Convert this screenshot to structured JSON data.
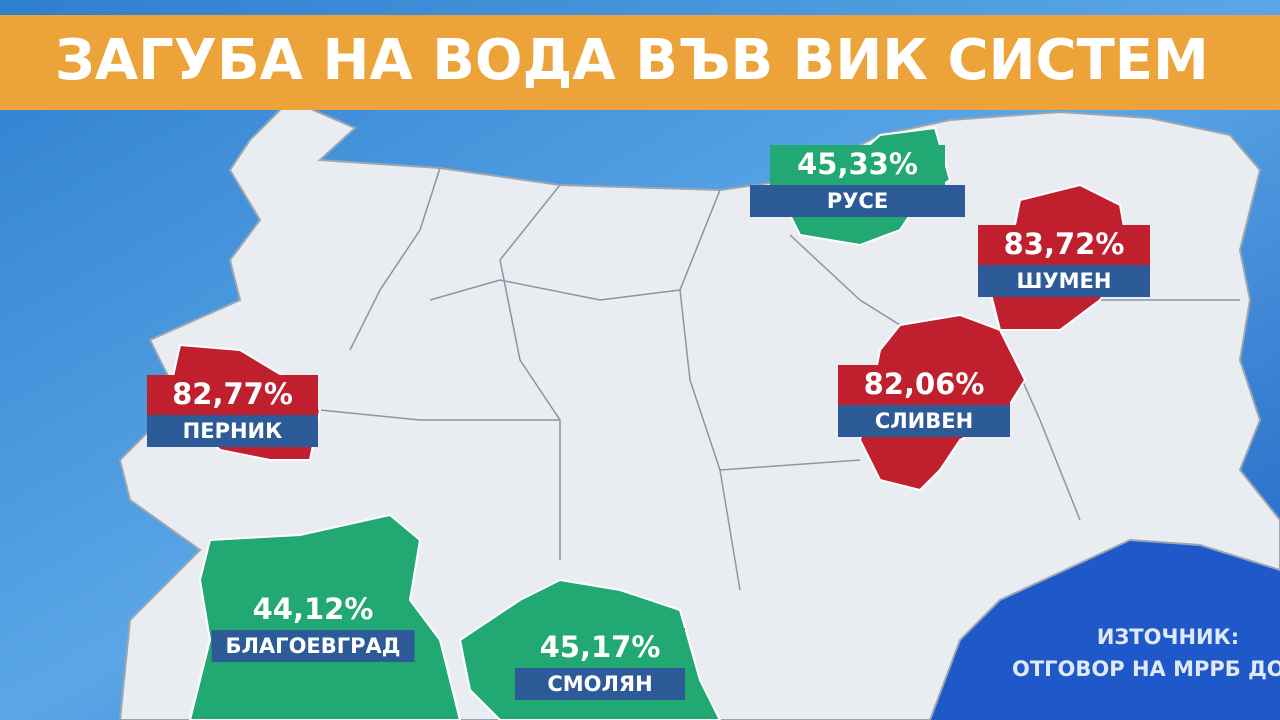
{
  "header": {
    "title": "ЗАГУБА НА ВОДА ВЪВ ВИК СИСТЕМ"
  },
  "regions": [
    {
      "name": "РУСЕ",
      "label": "45,33%",
      "color": "#22a872"
    },
    {
      "name": "ШУМЕН",
      "label": "83,72%",
      "color": "#c0202e"
    },
    {
      "name": "ПЕРНИК",
      "label": "82,77%",
      "color": "#c0202e"
    },
    {
      "name": "СЛИВЕН",
      "label": "82,06%",
      "color": "#c0202e"
    },
    {
      "name": "БЛАГОЕВГРАД",
      "label": "44,12%",
      "color": "#22a872"
    },
    {
      "name": "СМОЛЯН",
      "label": "45,17%",
      "color": "#22a872"
    }
  ],
  "source": {
    "lines": [
      "ИЗТОЧНИК:",
      "ОТГОВОР НА МРРБ ДО"
    ]
  }
}
